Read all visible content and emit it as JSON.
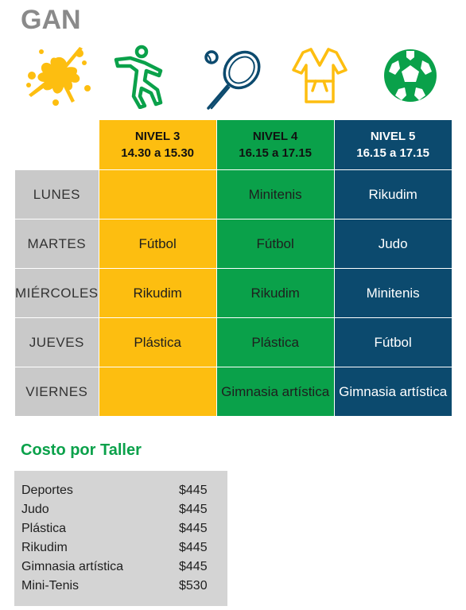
{
  "page": {
    "title": "GAN"
  },
  "icons": [
    "paint-splash-icon",
    "running-figure-icon",
    "tennis-racket-icon",
    "judo-gi-icon",
    "soccer-ball-icon"
  ],
  "colors": {
    "nivel3": "#fdbe10",
    "nivel4": "#0aa14a",
    "nivel5": "#0c4a6e",
    "day": "#c9c9c9",
    "cost_title": "#0aa14a"
  },
  "schedule": {
    "headers": [
      {
        "level": "NIVEL 3",
        "time": "14.30 a 15.30"
      },
      {
        "level": "NIVEL 4",
        "time": "16.15 a 17.15"
      },
      {
        "level": "NIVEL 5",
        "time": "16.15 a 17.15"
      }
    ],
    "rows": [
      {
        "day": "LUNES",
        "cells": [
          "",
          "Minitenis",
          "Rikudim"
        ]
      },
      {
        "day": "MARTES",
        "cells": [
          "Fútbol",
          "Fútbol",
          "Judo"
        ]
      },
      {
        "day": "MIÉRCOLES",
        "cells": [
          "Rikudim",
          "Rikudim",
          "Minitenis"
        ]
      },
      {
        "day": "JUEVES",
        "cells": [
          "Plástica",
          "Plástica",
          "Fútbol"
        ]
      },
      {
        "day": "VIERNES",
        "cells": [
          "",
          "Gimnasia artística",
          "Gimnasia artística"
        ]
      }
    ]
  },
  "costs": {
    "title": "Costo por Taller",
    "items": [
      {
        "name": "Deportes",
        "price": "$445"
      },
      {
        "name": "Judo",
        "price": "$445"
      },
      {
        "name": "Plástica",
        "price": "$445"
      },
      {
        "name": "Rikudim",
        "price": "$445"
      },
      {
        "name": "Gimnasia artística",
        "price": "$445"
      },
      {
        "name": "Mini-Tenis",
        "price": "$530"
      }
    ]
  }
}
